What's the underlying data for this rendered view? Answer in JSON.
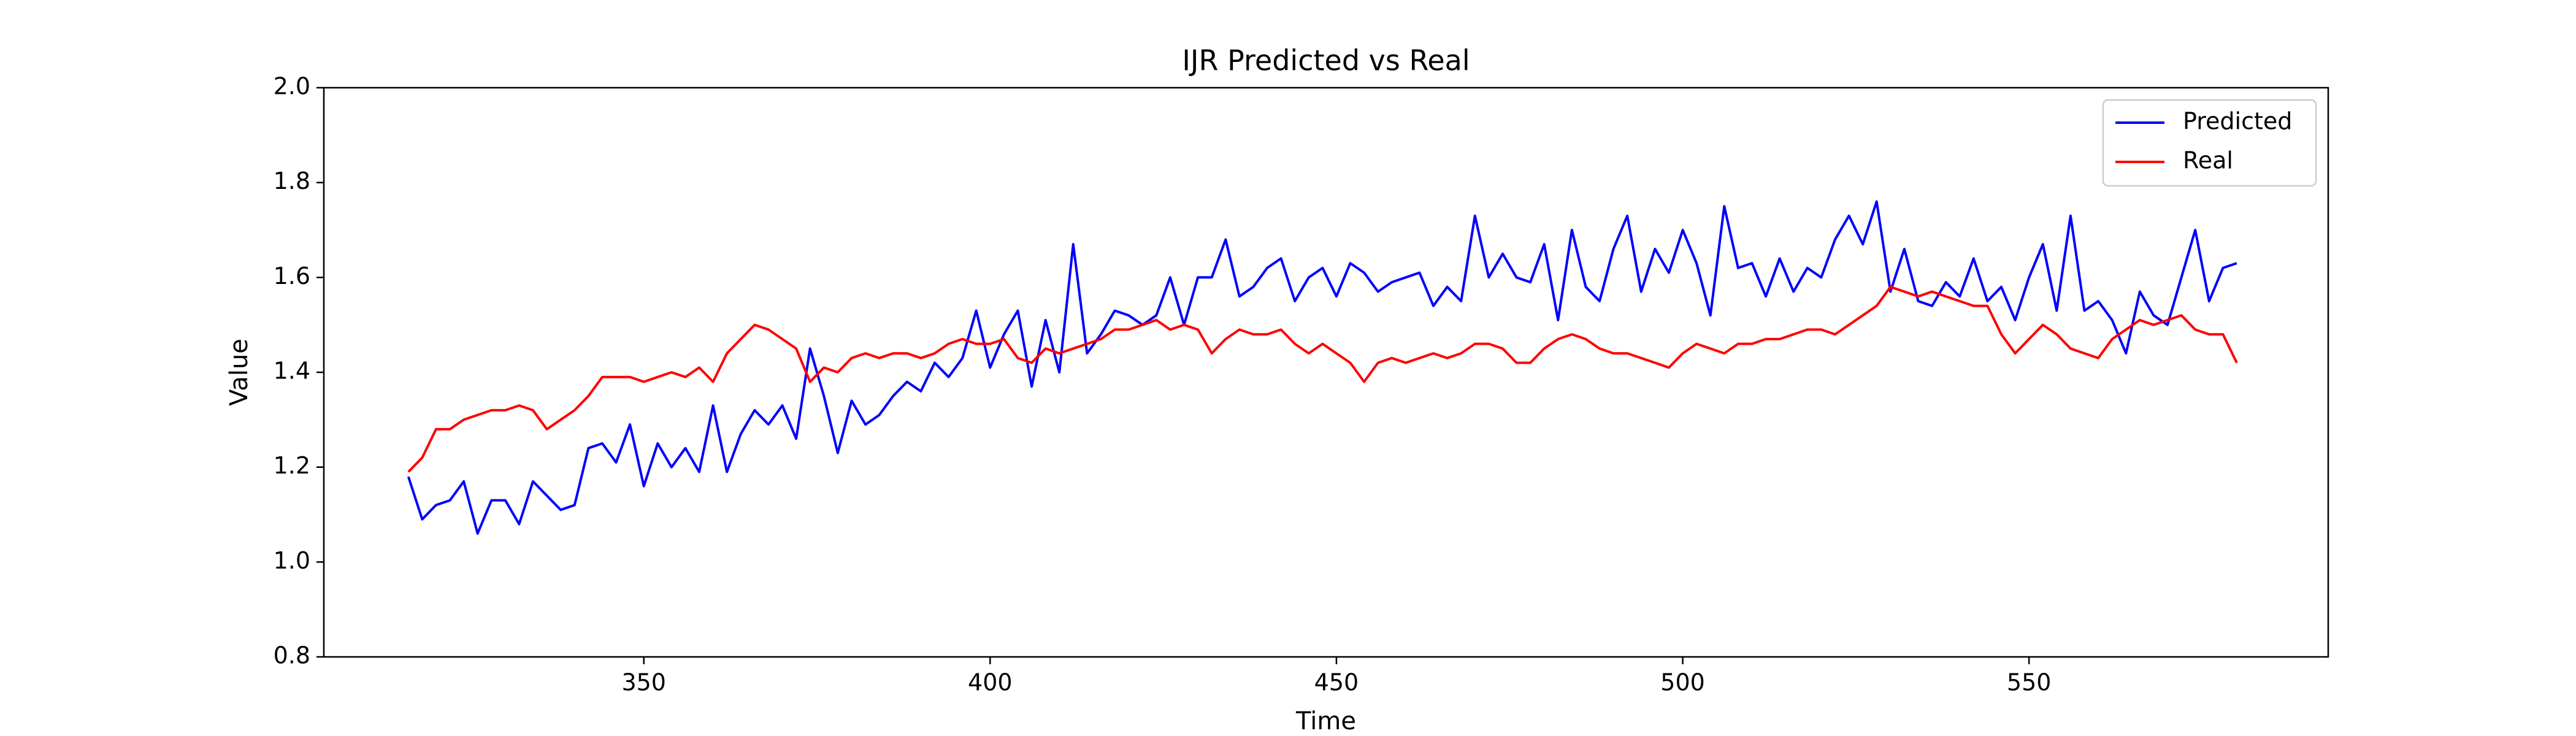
{
  "chart_data": {
    "type": "line",
    "title": "IJR Predicted vs Real",
    "xlabel": "Time",
    "ylabel": "Value",
    "x": [
      316,
      318,
      320,
      322,
      324,
      326,
      328,
      330,
      332,
      334,
      336,
      338,
      340,
      342,
      344,
      346,
      348,
      350,
      352,
      354,
      356,
      358,
      360,
      362,
      364,
      366,
      368,
      370,
      372,
      374,
      376,
      378,
      380,
      382,
      384,
      386,
      388,
      390,
      392,
      394,
      396,
      398,
      400,
      402,
      404,
      406,
      408,
      410,
      412,
      414,
      416,
      418,
      420,
      422,
      424,
      426,
      428,
      430,
      432,
      434,
      436,
      438,
      440,
      442,
      444,
      446,
      448,
      450,
      452,
      454,
      456,
      458,
      460,
      462,
      464,
      466,
      468,
      470,
      472,
      474,
      476,
      478,
      480,
      482,
      484,
      486,
      488,
      490,
      492,
      494,
      496,
      498,
      500,
      502,
      504,
      506,
      508,
      510,
      512,
      514,
      516,
      518,
      520,
      522,
      524,
      526,
      528,
      530,
      532,
      534,
      536,
      538,
      540,
      542,
      544,
      546,
      548,
      550,
      552,
      554,
      556,
      558,
      560,
      562,
      564,
      566,
      568,
      570,
      572,
      574,
      576,
      578,
      580
    ],
    "series": [
      {
        "name": "Predicted",
        "color": "#0000ff",
        "values": [
          1.18,
          1.09,
          1.12,
          1.13,
          1.17,
          1.06,
          1.13,
          1.13,
          1.08,
          1.17,
          1.14,
          1.11,
          1.12,
          1.24,
          1.25,
          1.21,
          1.29,
          1.16,
          1.25,
          1.2,
          1.24,
          1.19,
          1.33,
          1.19,
          1.27,
          1.32,
          1.29,
          1.33,
          1.26,
          1.45,
          1.35,
          1.23,
          1.34,
          1.29,
          1.31,
          1.35,
          1.38,
          1.36,
          1.42,
          1.39,
          1.43,
          1.53,
          1.41,
          1.48,
          1.53,
          1.37,
          1.51,
          1.4,
          1.67,
          1.44,
          1.48,
          1.53,
          1.52,
          1.5,
          1.52,
          1.6,
          1.5,
          1.6,
          1.6,
          1.68,
          1.56,
          1.58,
          1.62,
          1.64,
          1.55,
          1.6,
          1.62,
          1.56,
          1.63,
          1.61,
          1.57,
          1.59,
          1.6,
          1.61,
          1.54,
          1.58,
          1.55,
          1.73,
          1.6,
          1.65,
          1.6,
          1.59,
          1.67,
          1.51,
          1.7,
          1.58,
          1.55,
          1.66,
          1.73,
          1.57,
          1.66,
          1.61,
          1.7,
          1.63,
          1.52,
          1.75,
          1.62,
          1.63,
          1.56,
          1.64,
          1.57,
          1.62,
          1.6,
          1.68,
          1.73,
          1.67,
          1.76,
          1.57,
          1.66,
          1.55,
          1.54,
          1.59,
          1.56,
          1.64,
          1.55,
          1.58,
          1.51,
          1.6,
          1.67,
          1.53,
          1.73,
          1.53,
          1.55,
          1.51,
          1.44,
          1.57,
          1.52,
          1.5,
          1.6,
          1.7,
          1.55,
          1.62,
          1.63
        ]
      },
      {
        "name": "Real",
        "color": "#ff0000",
        "values": [
          1.19,
          1.22,
          1.28,
          1.28,
          1.3,
          1.31,
          1.32,
          1.32,
          1.33,
          1.32,
          1.28,
          1.3,
          1.32,
          1.35,
          1.39,
          1.39,
          1.39,
          1.38,
          1.39,
          1.4,
          1.39,
          1.41,
          1.38,
          1.44,
          1.47,
          1.5,
          1.49,
          1.47,
          1.45,
          1.38,
          1.41,
          1.4,
          1.43,
          1.44,
          1.43,
          1.44,
          1.44,
          1.43,
          1.44,
          1.46,
          1.47,
          1.46,
          1.46,
          1.47,
          1.43,
          1.42,
          1.45,
          1.44,
          1.45,
          1.46,
          1.47,
          1.49,
          1.49,
          1.5,
          1.51,
          1.49,
          1.5,
          1.49,
          1.44,
          1.47,
          1.49,
          1.48,
          1.48,
          1.49,
          1.46,
          1.44,
          1.46,
          1.44,
          1.42,
          1.38,
          1.42,
          1.43,
          1.42,
          1.43,
          1.44,
          1.43,
          1.44,
          1.46,
          1.46,
          1.45,
          1.42,
          1.42,
          1.45,
          1.47,
          1.48,
          1.47,
          1.45,
          1.44,
          1.44,
          1.43,
          1.42,
          1.41,
          1.44,
          1.46,
          1.45,
          1.44,
          1.46,
          1.46,
          1.47,
          1.47,
          1.48,
          1.49,
          1.49,
          1.48,
          1.5,
          1.52,
          1.54,
          1.58,
          1.57,
          1.56,
          1.57,
          1.56,
          1.55,
          1.54,
          1.54,
          1.48,
          1.44,
          1.47,
          1.5,
          1.48,
          1.45,
          1.44,
          1.43,
          1.47,
          1.49,
          1.51,
          1.5,
          1.51,
          1.52,
          1.49,
          1.48,
          1.48,
          1.42
        ]
      }
    ],
    "xlim": [
      303.8,
      593.2
    ],
    "xticks": [
      350,
      400,
      450,
      500,
      550
    ],
    "ylim": [
      0.8,
      2.0
    ],
    "yticks": [
      0.8,
      {
        "value": 1,
        "label": "1.0"
      },
      1.2,
      1.4,
      1.6,
      1.8,
      {
        "value": 2,
        "label": "2.0"
      }
    ],
    "legend": "upper right",
    "grid": false
  }
}
